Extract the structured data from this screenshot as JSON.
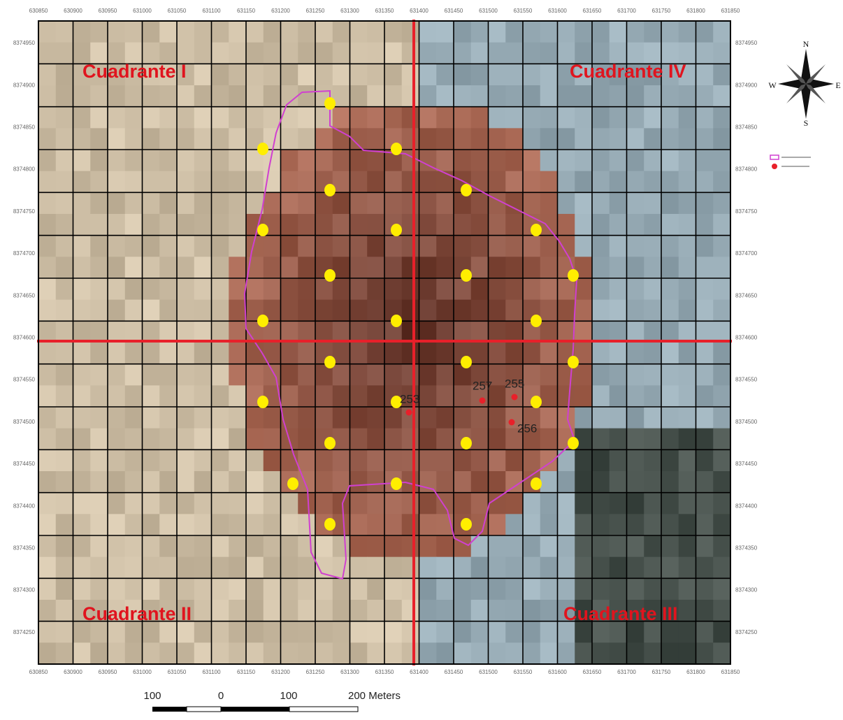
{
  "map": {
    "quadrants": [
      "Cuadrante I",
      "Cuadrante II",
      "Cuadrante III",
      "Cuadrante IV"
    ],
    "compass": {
      "n": "N",
      "s": "S",
      "e": "E",
      "w": "W"
    },
    "points": [
      "253",
      "257",
      "255",
      "256"
    ],
    "scale": [
      "100",
      "0",
      "100",
      "200  Meters"
    ],
    "x_ticks": [
      "630850",
      "630900",
      "630950",
      "631000",
      "631050",
      "631100",
      "631150",
      "631200",
      "631250",
      "631300",
      "631350",
      "631400",
      "631450",
      "631500",
      "631550",
      "631600",
      "631650",
      "631700",
      "631750",
      "631800",
      "631850"
    ],
    "y_ticks": [
      "8374950",
      "8374900",
      "8374850",
      "8374800",
      "8374750",
      "8374700",
      "8374650",
      "8374600",
      "8374550",
      "8374500",
      "8374450",
      "8374400",
      "8374350",
      "8374300",
      "8374250"
    ]
  }
}
